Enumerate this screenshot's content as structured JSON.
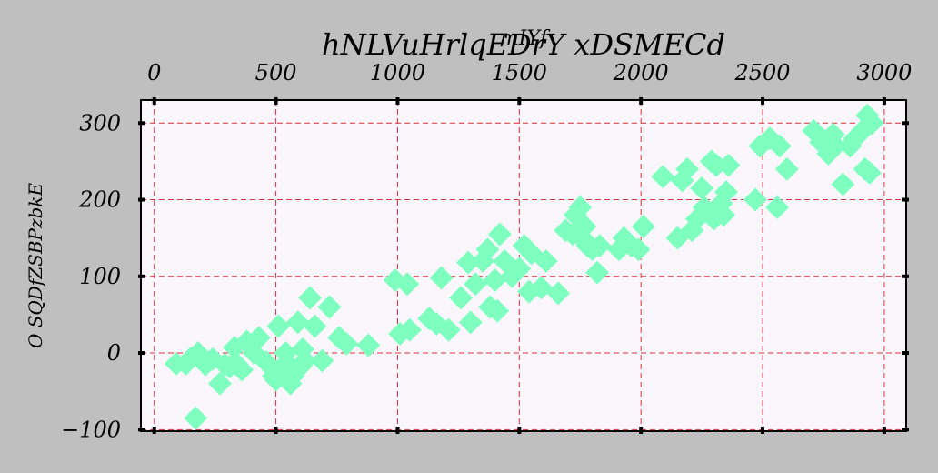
{
  "chart_data": {
    "type": "scatter",
    "title": "hNLVuHrlqEDrY xDSMECd",
    "xlabel": "mIYf",
    "ylabel": "O SQDfZSBPzbkE",
    "xlim": [
      -55,
      3090
    ],
    "ylim": [
      -102,
      330
    ],
    "xticks": [
      0,
      500,
      1000,
      1500,
      2000,
      2500,
      3000
    ],
    "yticks": [
      -100,
      0,
      100,
      200,
      300
    ],
    "xtick_labels": [
      "0",
      "500",
      "1000",
      "1500",
      "2000",
      "2500",
      "3000"
    ],
    "ytick_labels": [
      "−100",
      "0",
      "100",
      "200",
      "300"
    ],
    "grid": true,
    "marker": "diamond",
    "colors": {
      "marker": "#7fffbf",
      "grid": "#e0303a",
      "plot_bg": "#fbf6fc",
      "figure_bg": "#bfbfbf",
      "axes": "#000000"
    },
    "series": [
      {
        "x": [
          90,
          130,
          150,
          170,
          180,
          210,
          240,
          270,
          290,
          310,
          330,
          340,
          360,
          380,
          400,
          410,
          430,
          460,
          490,
          500,
          510,
          520,
          540,
          550,
          560,
          570,
          590,
          600,
          610,
          620,
          640,
          660,
          690,
          720,
          760,
          790,
          880,
          990,
          1010,
          1040,
          1050,
          1130,
          1160,
          1180,
          1210,
          1260,
          1290,
          1300,
          1320,
          1350,
          1370,
          1380,
          1400,
          1410,
          1420,
          1440,
          1470,
          1500,
          1520,
          1540,
          1550,
          1590,
          1610,
          1660,
          1690,
          1720,
          1730,
          1750,
          1760,
          1770,
          1780,
          1800,
          1820,
          1830,
          1910,
          1930,
          1960,
          1990,
          2010,
          2090,
          2150,
          2170,
          2190,
          2210,
          2230,
          2250,
          2260,
          2290,
          2300,
          2310,
          2330,
          2340,
          2350,
          2360,
          2470,
          2490,
          2530,
          2560,
          2570,
          2600,
          2710,
          2740,
          2770,
          2790,
          2800,
          2830,
          2860,
          2880,
          2910,
          2920,
          2930,
          2940,
          2950
        ],
        "y": [
          -14,
          -14,
          -7,
          -85,
          0,
          -15,
          -8,
          -40,
          -15,
          -18,
          7,
          -15,
          -22,
          15,
          10,
          0,
          20,
          -12,
          -30,
          -35,
          35,
          -20,
          0,
          -15,
          -40,
          -30,
          40,
          -18,
          5,
          -10,
          72,
          35,
          -10,
          60,
          20,
          12,
          10,
          95,
          25,
          90,
          30,
          45,
          38,
          98,
          30,
          72,
          118,
          40,
          90,
          120,
          135,
          60,
          95,
          55,
          155,
          120,
          100,
          110,
          140,
          80,
          130,
          85,
          120,
          78,
          160,
          155,
          180,
          190,
          150,
          165,
          140,
          135,
          105,
          140,
          135,
          150,
          140,
          135,
          165,
          230,
          150,
          225,
          240,
          160,
          175,
          215,
          190,
          250,
          175,
          245,
          195,
          180,
          210,
          245,
          200,
          270,
          280,
          190,
          270,
          240,
          290,
          275,
          260,
          285,
          270,
          220,
          270,
          280,
          290,
          240,
          310,
          235,
          300
        ]
      }
    ]
  }
}
